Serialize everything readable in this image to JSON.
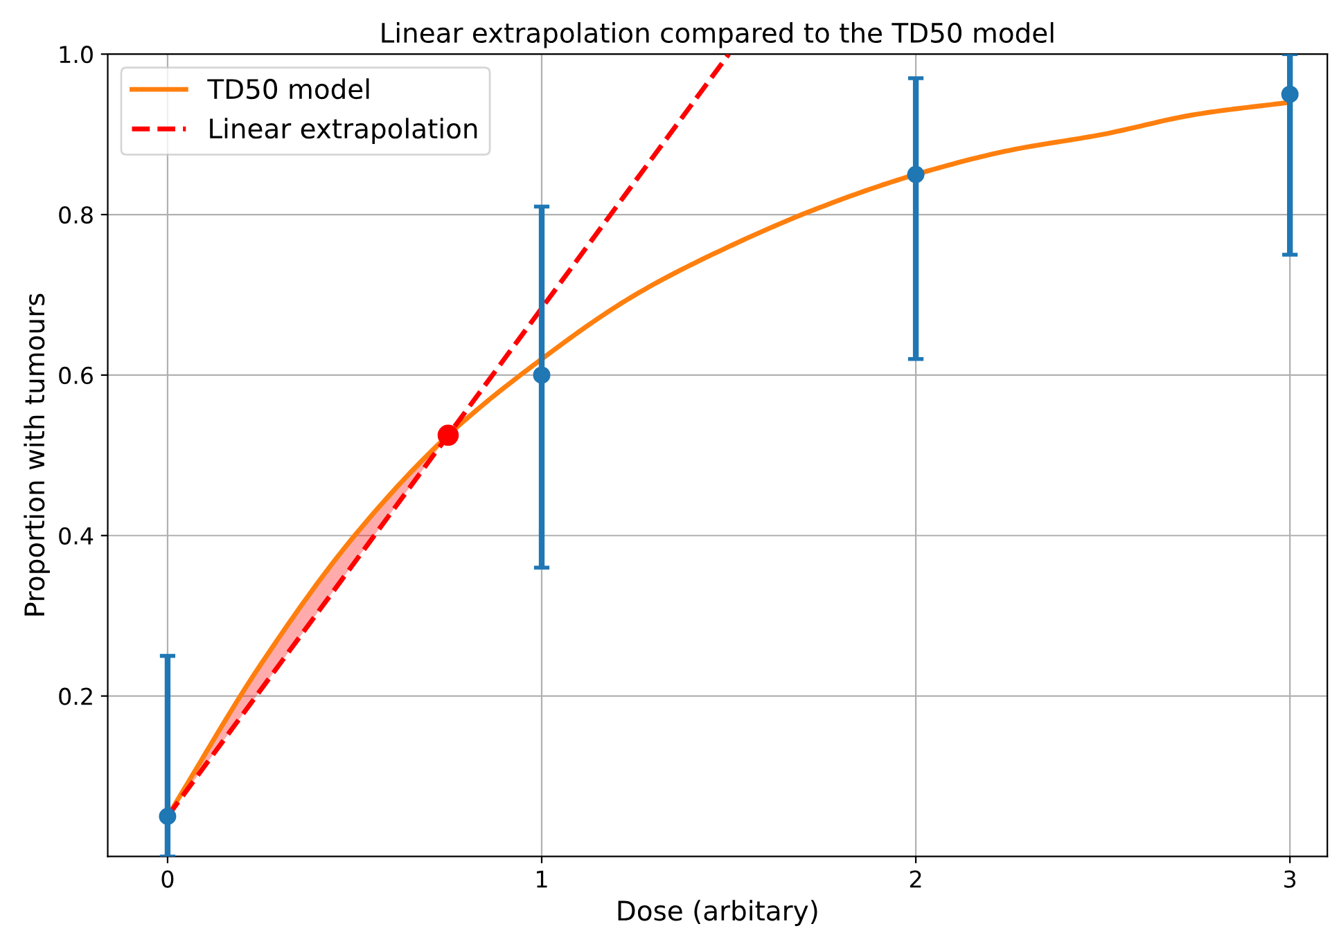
{
  "chart_data": {
    "type": "line",
    "title": "Linear extrapolation compared to the TD50 model",
    "xlabel": "Dose (arbitary)",
    "ylabel": "Proportion with tumours",
    "xlim": [
      -0.16,
      3.1
    ],
    "ylim": [
      0,
      1.0
    ],
    "xticks": [
      0,
      1,
      2,
      3
    ],
    "yticks": [
      0.2,
      0.4,
      0.6,
      0.8,
      {
        "value": 1.0,
        "label": "1.0"
      }
    ],
    "grid": true,
    "legend": "top left",
    "series": [
      {
        "name": "TD50 model",
        "color": "#ff7f0e",
        "line_style": "solid",
        "marker": "none",
        "x": [
          0,
          0.25,
          0.5,
          0.75,
          1,
          1.25,
          1.5,
          1.75,
          2,
          2.25,
          2.5,
          2.75,
          3
        ],
        "values": [
          0.05,
          0.24,
          0.4,
          0.525,
          0.62,
          0.7,
          0.76,
          0.81,
          0.85,
          0.88,
          0.9,
          0.925,
          0.94
        ],
        "lower": [
          0.05,
          0.208,
          0.367,
          0.525,
          null,
          null,
          null,
          null,
          null,
          null,
          null,
          null,
          null
        ],
        "upper": [
          0.05,
          0.24,
          0.4,
          0.525,
          null,
          null,
          null,
          null,
          null,
          null,
          null,
          null,
          null
        ]
      },
      {
        "type": "line",
        "name": "Linear extrapolation",
        "color": "#ff0000",
        "line_style": "dashed",
        "marker": "none",
        "x": [
          0,
          1.5
        ],
        "values": [
          0.05,
          1.0
        ]
      },
      {
        "type": "scatter",
        "color": "#1f77b4",
        "marker": "circle",
        "x": [
          0,
          1,
          2,
          3
        ],
        "values": [
          0.05,
          0.6,
          0.85,
          0.95
        ],
        "errors": [
          [
            0,
            0.25
          ],
          [
            0.36,
            0.81
          ],
          [
            0.62,
            0.97
          ],
          [
            0.75,
            1.0
          ]
        ]
      },
      {
        "type": "scatter",
        "color": "#ff0000",
        "marker": "circle",
        "x": [
          0.75
        ],
        "values": [
          0.525
        ]
      }
    ]
  }
}
